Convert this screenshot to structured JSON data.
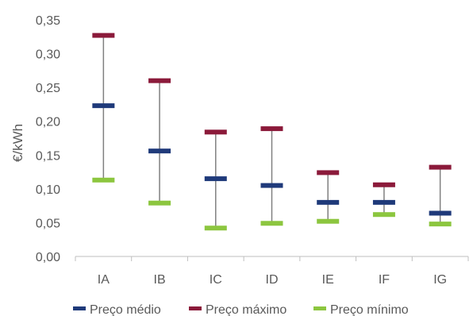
{
  "chart_data": {
    "type": "range",
    "ylabel": "€/kWh",
    "xlabel": "",
    "categories": [
      "IA",
      "IB",
      "IC",
      "ID",
      "IE",
      "IF",
      "IG"
    ],
    "ylim": [
      0,
      0.35
    ],
    "yticks": [
      "0,00",
      "0,05",
      "0,10",
      "0,15",
      "0,20",
      "0,25",
      "0,30",
      "0,35"
    ],
    "ytick_values": [
      0,
      0.05,
      0.1,
      0.15,
      0.2,
      0.25,
      0.3,
      0.35
    ],
    "grid": false,
    "legend_position": "bottom",
    "series": [
      {
        "name": "Preço médio",
        "color": "#1F3A7A",
        "values": [
          0.223,
          0.156,
          0.115,
          0.105,
          0.08,
          0.08,
          0.064
        ]
      },
      {
        "name": "Preço máximo",
        "color": "#8B1A3A",
        "values": [
          0.327,
          0.26,
          0.184,
          0.189,
          0.124,
          0.106,
          0.132
        ]
      },
      {
        "name": "Preço mínimo",
        "color": "#8CC63F",
        "values": [
          0.113,
          0.079,
          0.042,
          0.049,
          0.052,
          0.062,
          0.048
        ]
      }
    ],
    "range_line_color": "#808080",
    "axis_color": "#BFBFBF"
  }
}
